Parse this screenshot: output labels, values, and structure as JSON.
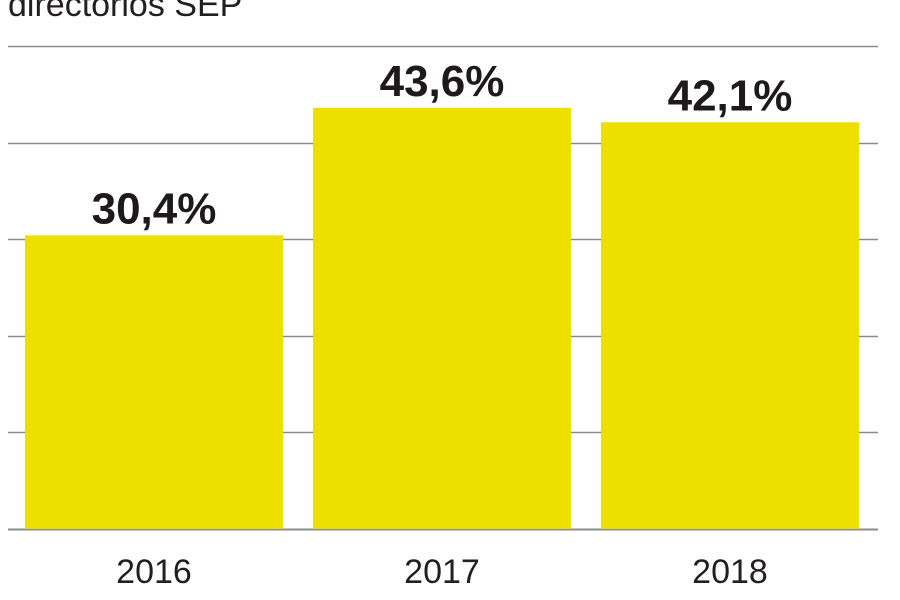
{
  "colors": {
    "bar": "#ede000",
    "grid": "#8c8c8c",
    "text": "#231f20"
  },
  "chart_data": {
    "type": "bar",
    "title": "directorios SEP",
    "categories": [
      "2016",
      "2017",
      "2018"
    ],
    "values": [
      30.4,
      43.6,
      42.1
    ],
    "value_labels": [
      "30,4%",
      "43,6%",
      "42,1%"
    ],
    "xlabel": "",
    "ylabel": "",
    "ylim": [
      0,
      50
    ],
    "grid": true,
    "legend": "none"
  }
}
